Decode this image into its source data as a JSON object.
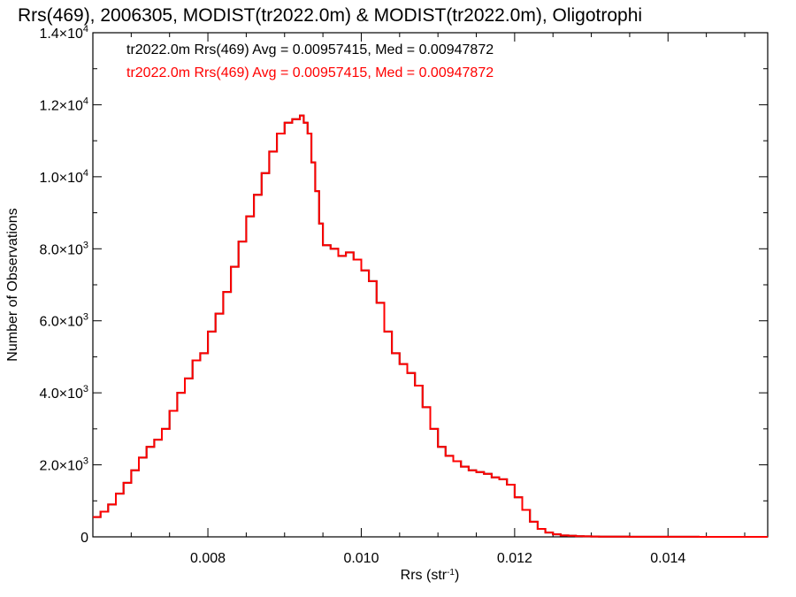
{
  "chart_data": {
    "type": "line",
    "title": "Rrs(469), 2006305, MODIST(tr2022.0m) & MODIST(tr2022.0m), Oligotrophi",
    "xlabel": "Rrs (str",
    "xlabel_sup": "-1",
    "xlabel_end": ")",
    "ylabel": "Number of Observations",
    "xlim": [
      0.0065,
      0.0153
    ],
    "ylim": [
      0,
      14000
    ],
    "grid": false,
    "x_ticks": [
      {
        "value": 0.008,
        "label": "0.008"
      },
      {
        "value": 0.01,
        "label": "0.010"
      },
      {
        "value": 0.012,
        "label": "0.012"
      },
      {
        "value": 0.014,
        "label": "0.014"
      }
    ],
    "y_ticks": [
      {
        "value": 0,
        "label": "0",
        "exp": ""
      },
      {
        "value": 2000,
        "label": "2.0×10",
        "exp": "3"
      },
      {
        "value": 4000,
        "label": "4.0×10",
        "exp": "3"
      },
      {
        "value": 6000,
        "label": "6.0×10",
        "exp": "3"
      },
      {
        "value": 8000,
        "label": "8.0×10",
        "exp": "3"
      },
      {
        "value": 10000,
        "label": "1.0×10",
        "exp": "4"
      },
      {
        "value": 12000,
        "label": "1.2×10",
        "exp": "4"
      },
      {
        "value": 14000,
        "label": "1.4×10",
        "exp": "4"
      }
    ],
    "legend_placement": "top-left",
    "series": [
      {
        "legend": "tr2022.0m Rrs(469) Avg = 0.00957415, Med = 0.00947872",
        "color": "#000000",
        "step": true,
        "x": [
          0.0065,
          0.0066,
          0.0067,
          0.0068,
          0.0069,
          0.007,
          0.0071,
          0.0072,
          0.0073,
          0.0074,
          0.0075,
          0.0076,
          0.0077,
          0.0078,
          0.0079,
          0.008,
          0.0081,
          0.0082,
          0.0083,
          0.0084,
          0.0085,
          0.0086,
          0.0087,
          0.0088,
          0.0089,
          0.009,
          0.0091,
          0.0092,
          0.00925,
          0.0093,
          0.00935,
          0.0094,
          0.00945,
          0.0095,
          0.0096,
          0.0097,
          0.0098,
          0.0099,
          0.01,
          0.0101,
          0.0102,
          0.0103,
          0.0104,
          0.0105,
          0.0106,
          0.0107,
          0.0108,
          0.0109,
          0.011,
          0.0111,
          0.0112,
          0.0113,
          0.0114,
          0.0115,
          0.0116,
          0.0117,
          0.0118,
          0.0119,
          0.012,
          0.0121,
          0.0122,
          0.0123,
          0.0124,
          0.0125,
          0.0126,
          0.0127,
          0.0128,
          0.0129,
          0.013,
          0.0131,
          0.0132,
          0.0133,
          0.0134,
          0.0135,
          0.0136,
          0.0137,
          0.0138,
          0.0139,
          0.014,
          0.0142,
          0.0144,
          0.0146,
          0.0148,
          0.015,
          0.0153
        ],
        "y": [
          550,
          700,
          900,
          1200,
          1500,
          1850,
          2200,
          2500,
          2700,
          3000,
          3500,
          4000,
          4400,
          4900,
          5100,
          5700,
          6200,
          6800,
          7500,
          8200,
          8900,
          9500,
          10100,
          10700,
          11200,
          11500,
          11600,
          11700,
          11500,
          11200,
          10400,
          9600,
          8700,
          8100,
          8000,
          7800,
          7900,
          7700,
          7400,
          7100,
          6500,
          5700,
          5100,
          4800,
          4550,
          4200,
          3600,
          3000,
          2500,
          2250,
          2100,
          1950,
          1850,
          1800,
          1750,
          1650,
          1600,
          1450,
          1100,
          750,
          420,
          220,
          120,
          70,
          40,
          30,
          20,
          15,
          10,
          8,
          6,
          5,
          4,
          3,
          3,
          2,
          2,
          2,
          2,
          2,
          1,
          1,
          1,
          1,
          1
        ]
      },
      {
        "legend": "tr2022.0m Rrs(469) Avg = 0.00957415, Med = 0.00947872",
        "color": "#ff0000",
        "step": true,
        "x": [
          0.0065,
          0.0066,
          0.0067,
          0.0068,
          0.0069,
          0.007,
          0.0071,
          0.0072,
          0.0073,
          0.0074,
          0.0075,
          0.0076,
          0.0077,
          0.0078,
          0.0079,
          0.008,
          0.0081,
          0.0082,
          0.0083,
          0.0084,
          0.0085,
          0.0086,
          0.0087,
          0.0088,
          0.0089,
          0.009,
          0.0091,
          0.0092,
          0.00925,
          0.0093,
          0.00935,
          0.0094,
          0.00945,
          0.0095,
          0.0096,
          0.0097,
          0.0098,
          0.0099,
          0.01,
          0.0101,
          0.0102,
          0.0103,
          0.0104,
          0.0105,
          0.0106,
          0.0107,
          0.0108,
          0.0109,
          0.011,
          0.0111,
          0.0112,
          0.0113,
          0.0114,
          0.0115,
          0.0116,
          0.0117,
          0.0118,
          0.0119,
          0.012,
          0.0121,
          0.0122,
          0.0123,
          0.0124,
          0.0125,
          0.0126,
          0.0127,
          0.0128,
          0.0129,
          0.013,
          0.0131,
          0.0132,
          0.0133,
          0.0134,
          0.0135,
          0.0136,
          0.0137,
          0.0138,
          0.0139,
          0.014,
          0.0142,
          0.0144,
          0.0146,
          0.0148,
          0.015,
          0.0153
        ],
        "y": [
          550,
          700,
          900,
          1200,
          1500,
          1850,
          2200,
          2500,
          2700,
          3000,
          3500,
          4000,
          4400,
          4900,
          5100,
          5700,
          6200,
          6800,
          7500,
          8200,
          8900,
          9500,
          10100,
          10700,
          11200,
          11500,
          11600,
          11700,
          11500,
          11200,
          10400,
          9600,
          8700,
          8100,
          8000,
          7800,
          7900,
          7700,
          7400,
          7100,
          6500,
          5700,
          5100,
          4800,
          4550,
          4200,
          3600,
          3000,
          2500,
          2250,
          2100,
          1950,
          1850,
          1800,
          1750,
          1650,
          1600,
          1450,
          1100,
          750,
          420,
          220,
          120,
          70,
          40,
          30,
          20,
          15,
          10,
          8,
          6,
          5,
          4,
          3,
          3,
          2,
          2,
          2,
          2,
          2,
          1,
          1,
          1,
          1,
          1
        ]
      }
    ]
  }
}
